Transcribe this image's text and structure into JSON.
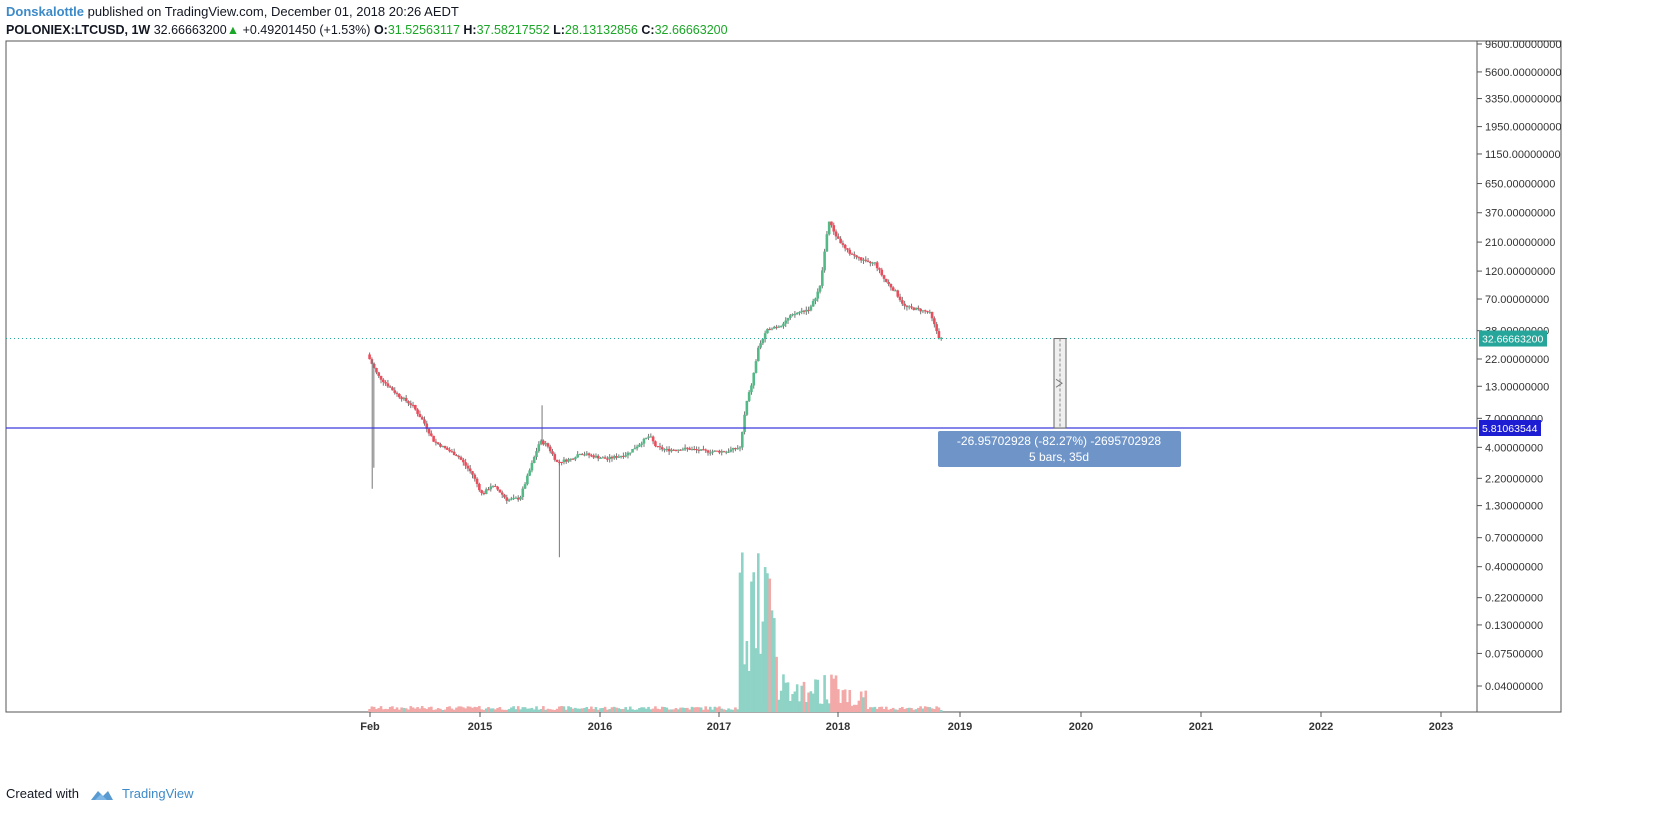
{
  "header": {
    "author": "Donskalottle",
    "published_text": "published on TradingView.com, December 01, 2018 20:26 AEDT",
    "symbol": "POLONIEX:LTCUSD, 1W",
    "price": "32.66663200",
    "change": "+0.49201450 (+1.53%)",
    "o_label": "O:",
    "o_value": "31.52563117",
    "h_label": "H:",
    "h_value": "37.58217552",
    "l_label": "L:",
    "l_value": "28.13132856",
    "c_label": "C:",
    "c_value": "32.66663200"
  },
  "footer": {
    "created_with": "Created with",
    "brand": "TradingView"
  },
  "colors": {
    "up": "#53b987",
    "down": "#eb4d5c",
    "vol_up": "#8fd3c6",
    "vol_down": "#f3a9a7",
    "hline": "#3b3bde",
    "last_price": "#26a69a",
    "measure_box": "#6f94c8"
  },
  "chart_data": {
    "type": "candlestick",
    "symbol": "LTCUSD",
    "exchange": "POLONIEX",
    "interval": "1W",
    "y_scale": "log",
    "y_ticks": [
      "9600.00000000",
      "5600.00000000",
      "3350.00000000",
      "1950.00000000",
      "1150.00000000",
      "650.00000000",
      "370.00000000",
      "210.00000000",
      "120.00000000",
      "70.00000000",
      "38.00000000",
      "22.00000000",
      "13.00000000",
      "7.00000000",
      "4.00000000",
      "2.20000000",
      "1.30000000",
      "0.70000000",
      "0.40000000",
      "0.22000000",
      "0.13000000",
      "0.07500000",
      "0.04000000"
    ],
    "x_ticks": [
      "Feb",
      "2015",
      "2016",
      "2017",
      "2018",
      "2019",
      "2020",
      "2021",
      "2022",
      "2023"
    ],
    "last_price_label": "32.66663200",
    "horizontal_line_label": "5.81063544",
    "measure": {
      "line1": "-26.95702928 (-82.27%) -2695702928",
      "line2": "5 bars, 35d"
    },
    "price_path": [
      {
        "d": "2014-01-28",
        "p": 24.0
      },
      {
        "d": "2014-03-01",
        "p": 16.0
      },
      {
        "d": "2014-05-01",
        "p": 11.0
      },
      {
        "d": "2014-06-15",
        "p": 9.0
      },
      {
        "d": "2014-07-20",
        "p": 6.5
      },
      {
        "d": "2014-08-20",
        "p": 4.5
      },
      {
        "d": "2014-10-01",
        "p": 3.8
      },
      {
        "d": "2014-11-01",
        "p": 3.4
      },
      {
        "d": "2014-12-15",
        "p": 2.4
      },
      {
        "d": "2015-01-15",
        "p": 1.6
      },
      {
        "d": "2015-02-10",
        "p": 1.9
      },
      {
        "d": "2015-03-01",
        "p": 1.8
      },
      {
        "d": "2015-04-01",
        "p": 1.45
      },
      {
        "d": "2015-05-10",
        "p": 1.5
      },
      {
        "d": "2015-06-10",
        "p": 2.6
      },
      {
        "d": "2015-07-10",
        "p": 4.5
      },
      {
        "d": "2015-08-01",
        "p": 4.2
      },
      {
        "d": "2015-09-01",
        "p": 3.0
      },
      {
        "d": "2015-10-15",
        "p": 3.2
      },
      {
        "d": "2015-11-10",
        "p": 3.6
      },
      {
        "d": "2015-12-15",
        "p": 3.4
      },
      {
        "d": "2016-02-01",
        "p": 3.2
      },
      {
        "d": "2016-04-01",
        "p": 3.5
      },
      {
        "d": "2016-06-10",
        "p": 5.0
      },
      {
        "d": "2016-07-01",
        "p": 4.0
      },
      {
        "d": "2016-08-01",
        "p": 3.8
      },
      {
        "d": "2016-10-01",
        "p": 3.9
      },
      {
        "d": "2016-12-01",
        "p": 3.7
      },
      {
        "d": "2017-02-01",
        "p": 3.7
      },
      {
        "d": "2017-03-15",
        "p": 4.0
      },
      {
        "d": "2017-04-01",
        "p": 9.0
      },
      {
        "d": "2017-04-20",
        "p": 14.0
      },
      {
        "d": "2017-05-10",
        "p": 28.0
      },
      {
        "d": "2017-06-10",
        "p": 40.0
      },
      {
        "d": "2017-07-15",
        "p": 42.0
      },
      {
        "d": "2017-08-15",
        "p": 50.0
      },
      {
        "d": "2017-09-15",
        "p": 55.0
      },
      {
        "d": "2017-10-15",
        "p": 58.0
      },
      {
        "d": "2017-11-15",
        "p": 90.0
      },
      {
        "d": "2017-12-10",
        "p": 320.0
      },
      {
        "d": "2018-01-01",
        "p": 240.0
      },
      {
        "d": "2018-02-01",
        "p": 180.0
      },
      {
        "d": "2018-03-01",
        "p": 160.0
      },
      {
        "d": "2018-04-10",
        "p": 140.0
      },
      {
        "d": "2018-05-01",
        "p": 140.0
      },
      {
        "d": "2018-06-01",
        "p": 100.0
      },
      {
        "d": "2018-07-01",
        "p": 82.0
      },
      {
        "d": "2018-08-01",
        "p": 60.0
      },
      {
        "d": "2018-09-01",
        "p": 58.0
      },
      {
        "d": "2018-10-15",
        "p": 54.0
      },
      {
        "d": "2018-11-15",
        "p": 32.67
      }
    ]
  }
}
